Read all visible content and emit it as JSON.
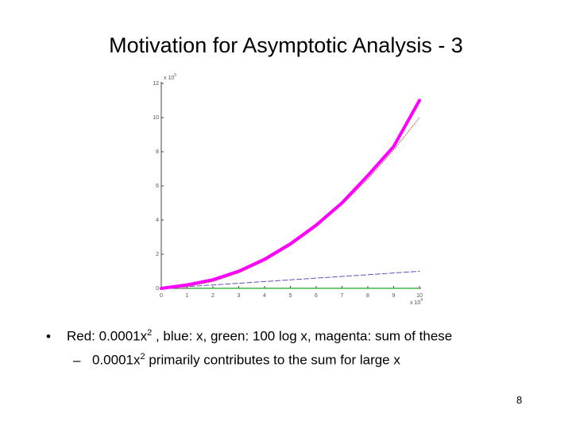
{
  "title": "Motivation for Asymptotic Analysis - 3",
  "chart_data": {
    "type": "line",
    "y_scale_base": "x 10",
    "y_scale_exp": "5",
    "x_scale_base": "x 10",
    "x_scale_exp": "4",
    "x": [
      0,
      1,
      2,
      3,
      4,
      5,
      6,
      7,
      8,
      9,
      10
    ],
    "series": [
      {
        "color": "#ff00ff",
        "style": "solid",
        "width": 4,
        "values": [
          0,
          0.204,
          0.504,
          1.0045,
          1.7046,
          2.6047,
          3.7048,
          5.0048,
          6.6049,
          8.305,
          11.005
        ]
      },
      {
        "color": "#c05050",
        "style": "dotted",
        "width": 1,
        "values": [
          0,
          0.1,
          0.4,
          0.9,
          1.6,
          2.5,
          3.6,
          4.9,
          6.4,
          8.1,
          10
        ]
      },
      {
        "color": "#6050c0",
        "style": "dashed",
        "width": 1,
        "values": [
          0,
          0.1,
          0.2,
          0.3,
          0.4,
          0.5,
          0.6,
          0.7,
          0.8,
          0.9,
          1
        ]
      },
      {
        "color": "#20a020",
        "style": "solid",
        "width": 1.2,
        "values": [
          null,
          0.004,
          0.0043,
          0.0045,
          0.0046,
          0.0047,
          0.0048,
          0.0048,
          0.0049,
          0.005,
          0.005
        ]
      }
    ],
    "xlim": [
      0,
      10
    ],
    "xticks": [
      0,
      1,
      2,
      3,
      4,
      5,
      6,
      7,
      8,
      9,
      10
    ],
    "ylim": [
      0,
      12
    ],
    "yticks": [
      0,
      2,
      4,
      6,
      8,
      10,
      12
    ]
  },
  "bullets": [
    {
      "before": "Red: 0.0001x",
      "sup": "2",
      "after": " , blue: x, green: 100 log x, magenta: sum of these",
      "sub": {
        "before": "0.0001x",
        "sup": "2",
        "after": " primarily contributes to the sum for large x"
      }
    }
  ],
  "page_number": "8"
}
